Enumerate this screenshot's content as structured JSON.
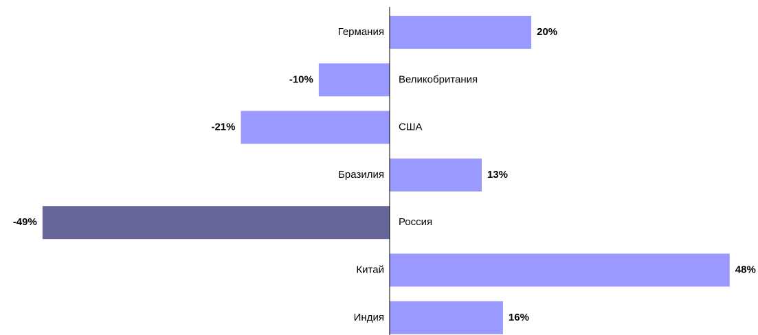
{
  "chart_data": {
    "type": "bar",
    "orientation": "horizontal",
    "categories": [
      "Германия",
      "Великобритания",
      "США",
      "Бразилия",
      "Россия",
      "Китай",
      "Индия"
    ],
    "values": [
      20,
      -10,
      -21,
      13,
      -49,
      48,
      16
    ],
    "value_labels": [
      "20%",
      "-10%",
      "-21%",
      "13%",
      "-49%",
      "48%",
      "16%"
    ],
    "colors": [
      "#9999ff",
      "#9999ff",
      "#9999ff",
      "#9999ff",
      "#666699",
      "#9999ff",
      "#9999ff"
    ],
    "xlim": [
      -55,
      52
    ]
  }
}
